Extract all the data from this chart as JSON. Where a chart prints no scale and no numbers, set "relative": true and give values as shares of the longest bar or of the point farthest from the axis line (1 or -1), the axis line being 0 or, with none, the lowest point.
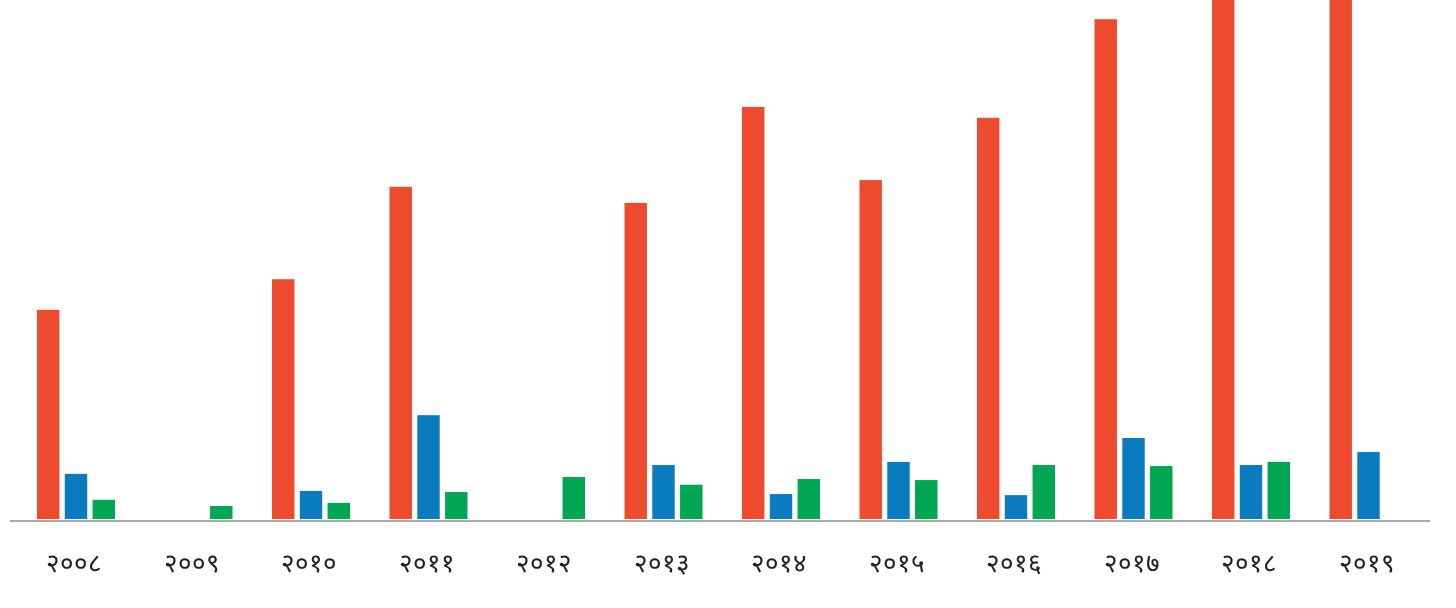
{
  "chart_data": {
    "type": "bar",
    "relative": true,
    "categories": [
      "२००८",
      "२००९",
      "२०१०",
      "२०११",
      "२०१२",
      "२०१३",
      "२०१४",
      "२०१५",
      "२०१६",
      "२०१७",
      "२०१८",
      "२०१९"
    ],
    "series": [
      {
        "color": "#ee4a2e",
        "values": [
          0.403,
          null,
          0.462,
          0.64,
          null,
          0.609,
          0.794,
          0.653,
          0.773,
          0.963,
          1,
          1
        ]
      },
      {
        "color": "#0a7bbf",
        "values": [
          0.087,
          null,
          0.054,
          0.2,
          null,
          0.104,
          0.048,
          0.11,
          0.046,
          0.156,
          0.104,
          0.129
        ]
      },
      {
        "color": "#00a652",
        "values": [
          0.037,
          0.025,
          0.031,
          0.052,
          0.081,
          0.066,
          0.077,
          0.075,
          0.104,
          0.102,
          0.11,
          null
        ]
      }
    ]
  }
}
